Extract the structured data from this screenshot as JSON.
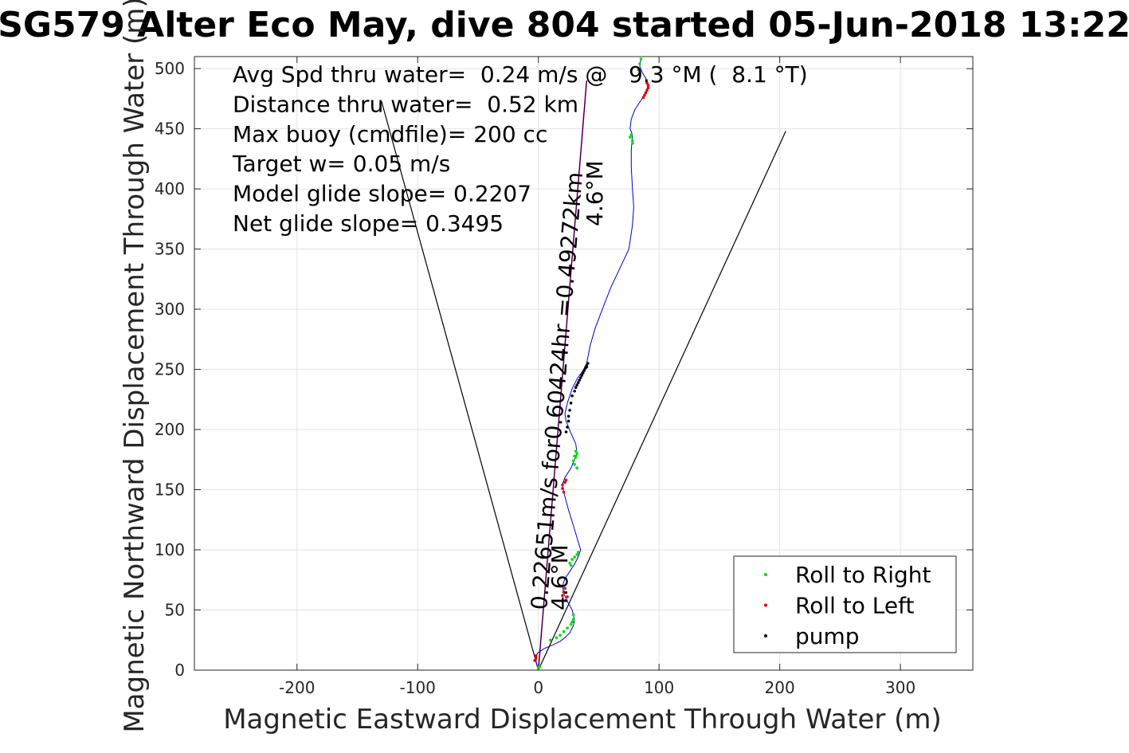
{
  "chart_data": {
    "type": "scatter",
    "title": "SG579 Alter Eco May, dive 804 started 05-Jun-2018 13:22",
    "xlabel": "Magnetic Eastward Displacement Through Water (m)",
    "ylabel": "Magnetic Northward Displacement Through Water (m)",
    "xlim": [
      -285,
      360
    ],
    "ylim": [
      0,
      510
    ],
    "xticks": [
      -200,
      -100,
      0,
      100,
      200,
      300
    ],
    "xtick_labels": [
      "-200",
      "-100",
      "0",
      "100",
      "200",
      "300"
    ],
    "yticks": [
      0,
      50,
      100,
      150,
      200,
      250,
      300,
      350,
      400,
      450,
      500
    ],
    "ytick_labels": [
      "0",
      "50",
      "100",
      "150",
      "200",
      "250",
      "300",
      "350",
      "400",
      "450",
      "500"
    ],
    "grid": true,
    "legend_position": "bottom-right",
    "annotations": [
      "Avg Spd thru water=  0.24 m/s @   9.3 °M (  8.1 °T)",
      "Distance thru water=  0.52 km",
      "Max buoy (cmdfile)= 200 cc",
      "Target w= 0.05 m/s",
      "Model glide slope= 0.2207",
      "Net glide slope= 0.3495"
    ],
    "rotated_labels": [
      "0.22651m/s for0.60424hr =0.49272km",
      "4.6°M",
      "4.6°M"
    ],
    "colors": {
      "trajectory": "#0000cc",
      "heading_line": "#cc00cc",
      "cone": "#000000",
      "roll_right": "#00e000",
      "roll_left": "#dd0000",
      "pump": "#000000",
      "grid": "#e3e3e3",
      "axes_text": "#262626"
    },
    "cone_lines": [
      {
        "x": [
          0,
          -130
        ],
        "y": [
          0,
          473
        ]
      },
      {
        "x": [
          0,
          205
        ],
        "y": [
          0,
          448
        ]
      }
    ],
    "heading_line": {
      "x": [
        0,
        40
      ],
      "y": [
        0,
        490
      ]
    },
    "trajectory": {
      "x": [
        0,
        -2,
        -1,
        5,
        12,
        18,
        22,
        26,
        29,
        30,
        28,
        24,
        21,
        20,
        22,
        26,
        30,
        33,
        35,
        30,
        25,
        21,
        20,
        22,
        27,
        30,
        32,
        31,
        27,
        23,
        22,
        24,
        28,
        32,
        37,
        40,
        43,
        47,
        53,
        60,
        68,
        75,
        78,
        79,
        78,
        77,
        77,
        78,
        76,
        77,
        80,
        84,
        88,
        90,
        91,
        89,
        86,
        84,
        85
      ],
      "y": [
        0,
        7,
        14,
        18,
        21,
        24,
        27,
        31,
        37,
        42,
        50,
        57,
        64,
        70,
        76,
        82,
        88,
        94,
        100,
        117,
        133,
        148,
        155,
        160,
        168,
        175,
        180,
        188,
        197,
        207,
        213,
        222,
        234,
        242,
        249,
        255,
        270,
        284,
        300,
        318,
        335,
        350,
        370,
        385,
        400,
        418,
        432,
        445,
        450,
        458,
        466,
        472,
        478,
        483,
        487,
        492,
        497,
        502,
        508
      ]
    },
    "series": [
      {
        "name": "Roll to Right",
        "marker_color": "#00e000",
        "x": [
          0,
          0,
          1,
          10,
          15,
          18,
          21,
          24,
          27,
          28,
          29,
          29,
          27,
          26,
          28,
          30,
          32,
          33,
          32,
          30,
          29,
          31,
          32,
          31,
          30,
          76,
          77,
          78,
          78,
          83,
          84,
          85
        ],
        "y": [
          1,
          2,
          3,
          25,
          27,
          29,
          32,
          35,
          38,
          40,
          42,
          46,
          87,
          89,
          92,
          94,
          96,
          98,
          168,
          171,
          174,
          177,
          180,
          182,
          178,
          443,
          445,
          440,
          438,
          499,
          504,
          508
        ]
      },
      {
        "name": "Roll to Left",
        "marker_color": "#dd0000",
        "x": [
          -3,
          -2,
          -2,
          20,
          21,
          22,
          23,
          24,
          21,
          20,
          20,
          22,
          23,
          87,
          88,
          89,
          90,
          91,
          91,
          90
        ],
        "y": [
          8,
          10,
          12,
          62,
          65,
          68,
          58,
          61,
          148,
          151,
          154,
          156,
          158,
          476,
          478,
          480,
          482,
          484,
          486,
          488
        ]
      },
      {
        "name": "pump",
        "marker_color": "#000000",
        "x": [
          23,
          24,
          25,
          25,
          26,
          27,
          28,
          30,
          31,
          32,
          33,
          34,
          35,
          36,
          37,
          38,
          39,
          40,
          40,
          41
        ],
        "y": [
          198,
          202,
          207,
          211,
          216,
          222,
          228,
          232,
          235,
          237,
          239,
          241,
          243,
          245,
          247,
          249,
          251,
          252,
          253,
          255
        ]
      }
    ]
  }
}
